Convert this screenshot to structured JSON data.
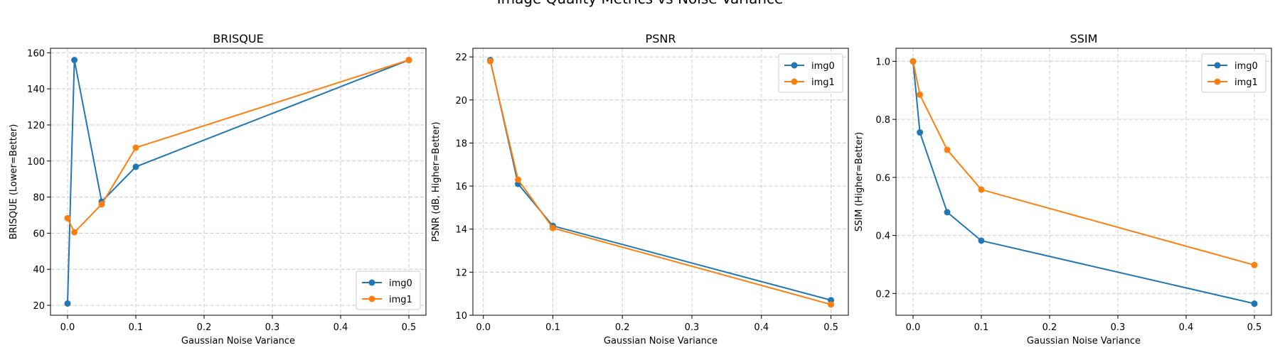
{
  "figure": {
    "suptitle": "Image Quality Metrics vs Noise Variance",
    "colors": {
      "img0": "#1f77b4",
      "img1": "#ff7f0e",
      "grid": "#cccccc"
    }
  },
  "chart_data": [
    {
      "type": "line",
      "title": "BRISQUE",
      "xlabel": "Gaussian Noise Variance",
      "ylabel": "BRISQUE (Lower=Better)",
      "xlim": [
        -0.025,
        0.525
      ],
      "ylim": [
        14.5,
        162.5
      ],
      "xticks": [
        0.0,
        0.1,
        0.2,
        0.3,
        0.4,
        0.5
      ],
      "xtick_labels": [
        "0.0",
        "0.1",
        "0.2",
        "0.3",
        "0.4",
        "0.5"
      ],
      "yticks": [
        20,
        40,
        60,
        80,
        100,
        120,
        140,
        160
      ],
      "ytick_labels": [
        "20",
        "40",
        "60",
        "80",
        "100",
        "120",
        "140",
        "160"
      ],
      "grid": true,
      "legend_position": "lower-right",
      "series": [
        {
          "name": "img0",
          "x": [
            0.0,
            0.01,
            0.05,
            0.1,
            0.5
          ],
          "values": [
            21.0,
            156.0,
            77.5,
            96.8,
            156.0
          ]
        },
        {
          "name": "img1",
          "x": [
            0.0,
            0.01,
            0.05,
            0.1,
            0.5
          ],
          "values": [
            68.3,
            60.5,
            76.0,
            107.4,
            156.0
          ]
        }
      ]
    },
    {
      "type": "line",
      "title": "PSNR",
      "xlabel": "Gaussian Noise Variance",
      "ylabel": "PSNR (dB, Higher=Better)",
      "xlim": [
        -0.015,
        0.525
      ],
      "ylim": [
        10.0,
        22.4
      ],
      "xticks": [
        0.0,
        0.1,
        0.2,
        0.3,
        0.4,
        0.5
      ],
      "xtick_labels": [
        "0.0",
        "0.1",
        "0.2",
        "0.3",
        "0.4",
        "0.5"
      ],
      "yticks": [
        10,
        12,
        14,
        16,
        18,
        20,
        22
      ],
      "ytick_labels": [
        "10",
        "12",
        "14",
        "16",
        "18",
        "20",
        "22"
      ],
      "grid": true,
      "legend_position": "upper-right",
      "series": [
        {
          "name": "img0",
          "x": [
            0.01,
            0.05,
            0.1,
            0.5
          ],
          "values": [
            21.85,
            16.1,
            14.15,
            10.7
          ]
        },
        {
          "name": "img1",
          "x": [
            0.01,
            0.05,
            0.1,
            0.5
          ],
          "values": [
            21.8,
            16.3,
            14.05,
            10.5
          ]
        }
      ]
    },
    {
      "type": "line",
      "title": "SSIM",
      "xlabel": "Gaussian Noise Variance",
      "ylabel": "SSIM (Higher=Better)",
      "xlim": [
        -0.025,
        0.525
      ],
      "ylim": [
        0.125,
        1.045
      ],
      "xticks": [
        0.0,
        0.1,
        0.2,
        0.3,
        0.4,
        0.5
      ],
      "xtick_labels": [
        "0.0",
        "0.1",
        "0.2",
        "0.3",
        "0.4",
        "0.5"
      ],
      "yticks": [
        0.2,
        0.4,
        0.6,
        0.8,
        1.0
      ],
      "ytick_labels": [
        "0.2",
        "0.4",
        "0.6",
        "0.8",
        "1.0"
      ],
      "grid": true,
      "legend_position": "upper-right",
      "series": [
        {
          "name": "img0",
          "x": [
            0.0,
            0.01,
            0.05,
            0.1,
            0.5
          ],
          "values": [
            1.0,
            0.755,
            0.48,
            0.382,
            0.165
          ]
        },
        {
          "name": "img1",
          "x": [
            0.0,
            0.01,
            0.05,
            0.1,
            0.5
          ],
          "values": [
            1.0,
            0.885,
            0.695,
            0.558,
            0.298
          ]
        }
      ]
    }
  ]
}
